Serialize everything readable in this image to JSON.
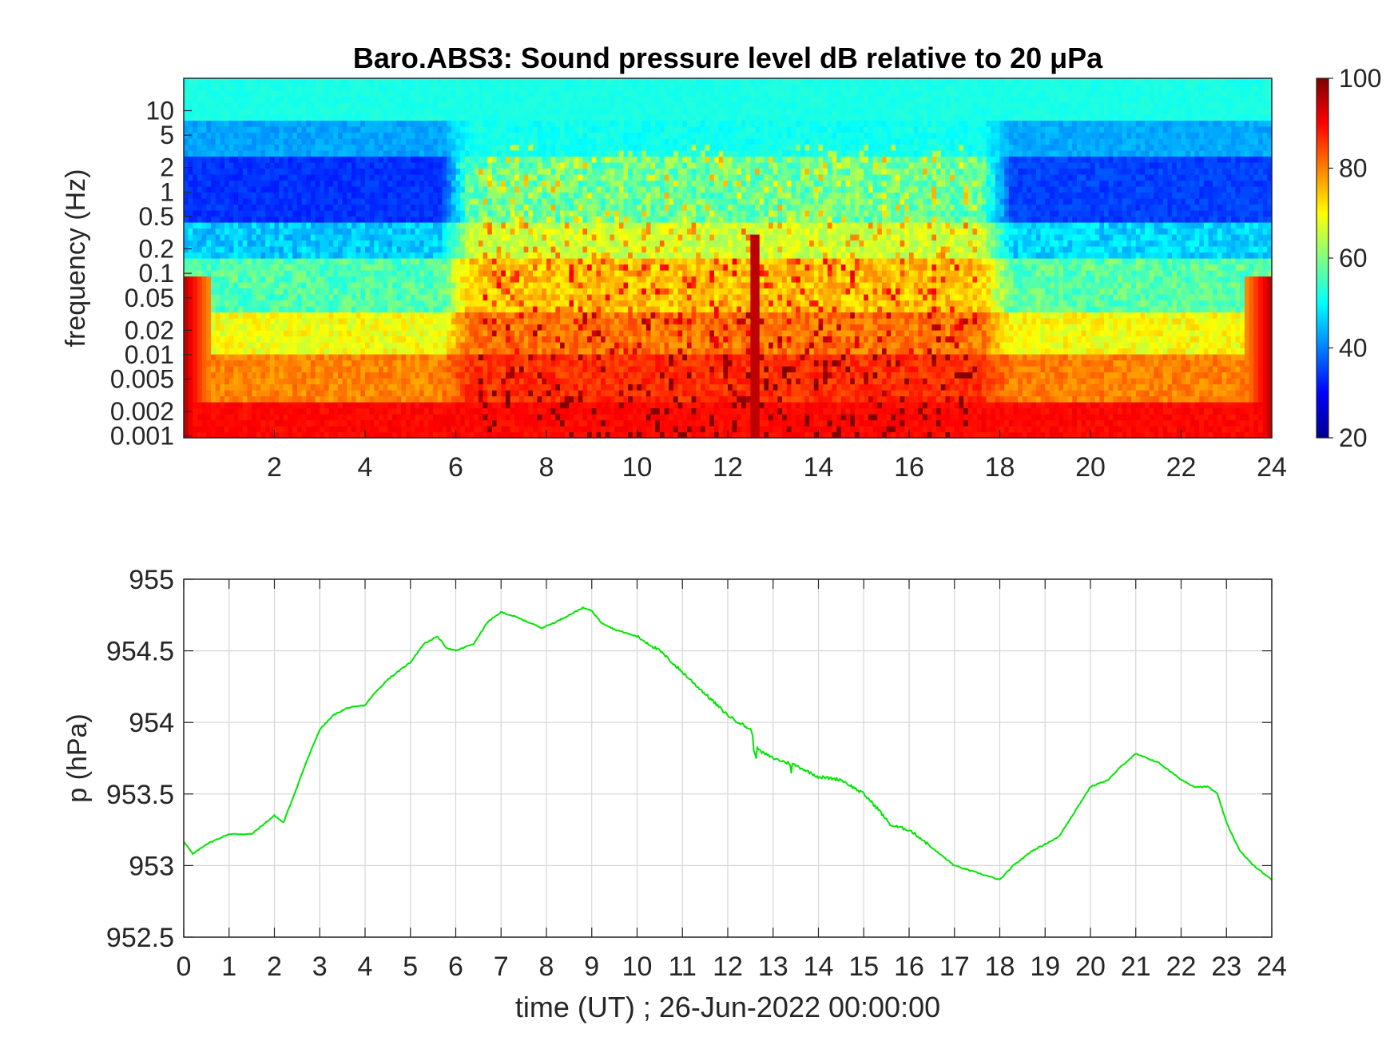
{
  "chart_data": [
    {
      "type": "heatmap",
      "title": "Baro.ABS3: Sound pressure level dB relative to 20 μPa",
      "ylabel": "frequency (Hz)",
      "xlabel": "",
      "x_ticks": [
        2,
        4,
        6,
        8,
        10,
        12,
        14,
        16,
        18,
        20,
        22,
        24
      ],
      "y_ticks": [
        "10",
        "5",
        "2",
        "1",
        "0.5",
        "0.2",
        "0.1",
        "0.05",
        "0.02",
        "0.01",
        "0.005",
        "0.002",
        "0.001"
      ],
      "y_tick_values": [
        10,
        5,
        2,
        1,
        0.5,
        0.2,
        0.1,
        0.05,
        0.02,
        0.01,
        0.005,
        0.002,
        0.001
      ],
      "xlim": [
        0,
        24
      ],
      "ylim": [
        0.00095,
        25
      ],
      "y_scale": "log",
      "colormap": "jet",
      "colorbar": {
        "ticks": [
          20,
          40,
          60,
          80,
          100
        ],
        "range": [
          20,
          100
        ]
      },
      "levels_db": {
        "note_bands_hz": [
          "0.001-0.003",
          "0.003-0.03",
          "0.03-0.3",
          "0.3-3",
          "3-25"
        ],
        "quiet_hours_0_to_6": [
          90,
          70,
          48,
          33,
          50
        ],
        "active_hours_6_to_18": [
          88,
          80,
          70,
          58,
          52
        ],
        "evening_hours_18_to_24": [
          90,
          72,
          52,
          34,
          50
        ]
      }
    },
    {
      "type": "line",
      "title": "",
      "xlabel": "time (UT) ; 26-Jun-2022 00:00:00",
      "ylabel": "p (hPa)",
      "xlim": [
        0,
        24
      ],
      "ylim": [
        952.5,
        955
      ],
      "x_ticks": [
        0,
        1,
        2,
        3,
        4,
        5,
        6,
        7,
        8,
        9,
        10,
        11,
        12,
        13,
        14,
        15,
        16,
        17,
        18,
        19,
        20,
        21,
        22,
        23,
        24
      ],
      "y_ticks": [
        "955",
        "954.5",
        "954",
        "953.5",
        "953",
        "952.5"
      ],
      "y_tick_values": [
        955,
        954.5,
        954,
        953.5,
        953,
        952.5
      ],
      "grid": true,
      "series": [
        {
          "name": "",
          "color": "#00e600",
          "x": [
            0,
            0.2,
            0.5,
            1.0,
            1.5,
            2.0,
            2.2,
            2.5,
            2.7,
            3.0,
            3.3,
            3.6,
            4.0,
            4.2,
            4.5,
            5.0,
            5.3,
            5.6,
            5.8,
            6.0,
            6.4,
            6.7,
            7.0,
            7.3,
            7.6,
            7.9,
            8.2,
            8.5,
            8.8,
            9.0,
            9.2,
            9.5,
            10.0,
            10.5,
            11.0,
            11.5,
            12.0,
            12.5,
            12.7,
            13.0,
            13.5,
            14.0,
            14.5,
            15.0,
            15.3,
            15.6,
            16.0,
            16.3,
            16.6,
            17.0,
            17.5,
            18.0,
            18.3,
            18.7,
            19.0,
            19.3,
            19.6,
            20.0,
            20.4,
            20.7,
            21.0,
            21.5,
            22.0,
            22.3,
            22.6,
            22.8,
            23.0,
            23.3,
            23.6,
            24.0
          ],
          "y": [
            953.17,
            953.08,
            953.15,
            953.22,
            953.22,
            953.35,
            953.3,
            953.55,
            953.72,
            953.95,
            954.05,
            954.1,
            954.12,
            954.2,
            954.3,
            954.42,
            954.55,
            954.6,
            954.52,
            954.5,
            954.55,
            954.7,
            954.77,
            954.74,
            954.7,
            954.66,
            954.7,
            954.75,
            954.8,
            954.78,
            954.7,
            954.65,
            954.6,
            954.5,
            954.35,
            954.2,
            954.05,
            953.95,
            953.8,
            953.75,
            953.7,
            953.62,
            953.6,
            953.5,
            953.4,
            953.28,
            953.25,
            953.18,
            953.1,
            953.0,
            952.95,
            952.9,
            953.0,
            953.1,
            953.15,
            953.2,
            953.35,
            953.55,
            953.6,
            953.7,
            953.78,
            953.72,
            953.6,
            953.55,
            953.55,
            953.5,
            953.3,
            953.1,
            953.0,
            952.9
          ]
        }
      ]
    }
  ]
}
